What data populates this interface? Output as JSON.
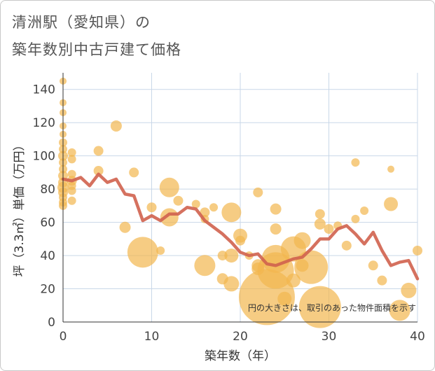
{
  "chart_data": {
    "type": "scatter",
    "title_line1": "清洲駅（愛知県）の",
    "title_line2": "築年数別中古戸建て価格",
    "xlabel": "築年数（年）",
    "ylabel": "坪（3.3㎡）単価（万円）",
    "xlim": [
      0,
      40
    ],
    "ylim": [
      0,
      150
    ],
    "xticks": [
      0,
      10,
      20,
      30,
      40
    ],
    "yticks": [
      0,
      20,
      40,
      60,
      80,
      100,
      120,
      140
    ],
    "note": "円の大きさは、取引のあった物件面積を示す",
    "colors": {
      "bubble": "#f2b74e",
      "line": "#d0624e",
      "grid": "#c9d7e8",
      "axis": "#333333"
    },
    "scatter": [
      {
        "x": 0,
        "y": 145,
        "s": 5
      },
      {
        "x": 0,
        "y": 132,
        "s": 5
      },
      {
        "x": 0,
        "y": 126,
        "s": 5
      },
      {
        "x": 0,
        "y": 118,
        "s": 5
      },
      {
        "x": 0,
        "y": 113,
        "s": 5
      },
      {
        "x": 0,
        "y": 108,
        "s": 6
      },
      {
        "x": 0,
        "y": 104,
        "s": 6
      },
      {
        "x": 0,
        "y": 100,
        "s": 7
      },
      {
        "x": 0,
        "y": 96,
        "s": 6
      },
      {
        "x": 0,
        "y": 92,
        "s": 6
      },
      {
        "x": 0,
        "y": 88,
        "s": 7
      },
      {
        "x": 0,
        "y": 84,
        "s": 7
      },
      {
        "x": 0,
        "y": 81,
        "s": 8
      },
      {
        "x": 0,
        "y": 78,
        "s": 7
      },
      {
        "x": 0,
        "y": 75,
        "s": 6
      },
      {
        "x": 0,
        "y": 72,
        "s": 6
      },
      {
        "x": 0,
        "y": 70,
        "s": 6
      },
      {
        "x": 1,
        "y": 102,
        "s": 6
      },
      {
        "x": 1,
        "y": 98,
        "s": 6
      },
      {
        "x": 1,
        "y": 89,
        "s": 6
      },
      {
        "x": 1,
        "y": 85,
        "s": 7
      },
      {
        "x": 1,
        "y": 82,
        "s": 6
      },
      {
        "x": 1,
        "y": 79,
        "s": 6
      },
      {
        "x": 1,
        "y": 73,
        "s": 6
      },
      {
        "x": 4,
        "y": 103,
        "s": 7
      },
      {
        "x": 4,
        "y": 91,
        "s": 7
      },
      {
        "x": 6,
        "y": 118,
        "s": 8
      },
      {
        "x": 7,
        "y": 57,
        "s": 8
      },
      {
        "x": 8,
        "y": 90,
        "s": 7
      },
      {
        "x": 9,
        "y": 42,
        "s": 22
      },
      {
        "x": 10,
        "y": 69,
        "s": 7
      },
      {
        "x": 11,
        "y": 43,
        "s": 6
      },
      {
        "x": 12,
        "y": 81,
        "s": 14
      },
      {
        "x": 12,
        "y": 63,
        "s": 13
      },
      {
        "x": 13,
        "y": 73,
        "s": 7
      },
      {
        "x": 15,
        "y": 71,
        "s": 6
      },
      {
        "x": 16,
        "y": 66,
        "s": 7
      },
      {
        "x": 16,
        "y": 62,
        "s": 6
      },
      {
        "x": 16,
        "y": 34,
        "s": 15
      },
      {
        "x": 17,
        "y": 69,
        "s": 6
      },
      {
        "x": 18,
        "y": 40,
        "s": 7
      },
      {
        "x": 18,
        "y": 26,
        "s": 8
      },
      {
        "x": 19,
        "y": 66,
        "s": 14
      },
      {
        "x": 19,
        "y": 40,
        "s": 10
      },
      {
        "x": 19,
        "y": 23,
        "s": 11
      },
      {
        "x": 20,
        "y": 52,
        "s": 10
      },
      {
        "x": 20,
        "y": 49,
        "s": 7
      },
      {
        "x": 21,
        "y": 40,
        "s": 6
      },
      {
        "x": 22,
        "y": 78,
        "s": 7
      },
      {
        "x": 22,
        "y": 34,
        "s": 9
      },
      {
        "x": 22,
        "y": 32,
        "s": 9
      },
      {
        "x": 23,
        "y": 15,
        "s": 40
      },
      {
        "x": 24,
        "y": 68,
        "s": 8
      },
      {
        "x": 24,
        "y": 56,
        "s": 8
      },
      {
        "x": 24,
        "y": 38,
        "s": 20
      },
      {
        "x": 24,
        "y": 31,
        "s": 26
      },
      {
        "x": 25,
        "y": 14,
        "s": 10
      },
      {
        "x": 26,
        "y": 44,
        "s": 18
      },
      {
        "x": 26,
        "y": 25,
        "s": 10
      },
      {
        "x": 27,
        "y": 49,
        "s": 12
      },
      {
        "x": 27,
        "y": 34,
        "s": 9
      },
      {
        "x": 28,
        "y": 33,
        "s": 24
      },
      {
        "x": 29,
        "y": 65,
        "s": 7
      },
      {
        "x": 29,
        "y": 59,
        "s": 8
      },
      {
        "x": 29,
        "y": 9,
        "s": 30
      },
      {
        "x": 30,
        "y": 56,
        "s": 7
      },
      {
        "x": 31,
        "y": 58,
        "s": 6
      },
      {
        "x": 32,
        "y": 46,
        "s": 7
      },
      {
        "x": 33,
        "y": 96,
        "s": 6
      },
      {
        "x": 33,
        "y": 62,
        "s": 6
      },
      {
        "x": 34,
        "y": 67,
        "s": 6
      },
      {
        "x": 35,
        "y": 34,
        "s": 7
      },
      {
        "x": 36,
        "y": 25,
        "s": 7
      },
      {
        "x": 37,
        "y": 92,
        "s": 5
      },
      {
        "x": 37,
        "y": 71,
        "s": 10
      },
      {
        "x": 38,
        "y": 7,
        "s": 15
      },
      {
        "x": 39,
        "y": 19,
        "s": 11
      },
      {
        "x": 40,
        "y": 43,
        "s": 7
      }
    ],
    "line": {
      "x": [
        0,
        1,
        2,
        3,
        4,
        5,
        6,
        7,
        8,
        9,
        10,
        11,
        12,
        13,
        14,
        15,
        16,
        17,
        18,
        19,
        20,
        21,
        22,
        23,
        24,
        25,
        26,
        27,
        28,
        29,
        30,
        31,
        32,
        33,
        34,
        35,
        36,
        37,
        38,
        39,
        40
      ],
      "y": [
        86,
        85,
        87,
        82,
        89,
        84,
        86,
        77,
        76,
        61,
        64,
        61,
        65,
        65,
        69,
        68,
        61,
        57,
        53,
        48,
        42,
        40,
        41,
        35,
        34,
        36,
        38,
        39,
        44,
        50,
        50,
        56,
        58,
        53,
        47,
        54,
        43,
        34,
        36,
        37,
        26
      ]
    }
  }
}
